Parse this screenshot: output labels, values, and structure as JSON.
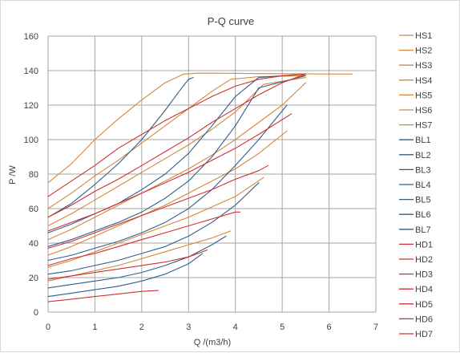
{
  "chart_data": {
    "type": "line",
    "title": "P-Q  curve",
    "xlabel": "Q /(m3/h)",
    "ylabel": "P /W",
    "xlim": [
      0,
      7
    ],
    "ylim": [
      0,
      160
    ],
    "xticks": [
      0,
      1,
      2,
      3,
      4,
      5,
      6,
      7
    ],
    "yticks": [
      0,
      20,
      40,
      60,
      80,
      100,
      120,
      140,
      160
    ],
    "grid": true,
    "legend_position": "right",
    "series": [
      {
        "name": "HS1",
        "color": "#d4873a",
        "x": [
          0,
          0.5,
          1,
          1.5,
          2,
          2.5,
          2.9,
          3.2,
          3.6,
          4.5,
          5.5,
          6.5
        ],
        "y": [
          75,
          86,
          100,
          112,
          123,
          133,
          138,
          138.5,
          138.5,
          138.3,
          138.1,
          138
        ]
      },
      {
        "name": "HS2",
        "color": "#d4873a",
        "x": [
          0,
          0.5,
          1,
          1.5,
          2,
          2.5,
          3,
          3.5,
          3.9,
          4.5,
          5.5
        ],
        "y": [
          60,
          69,
          79,
          88,
          98,
          108,
          118,
          128,
          135,
          136.5,
          137
        ]
      },
      {
        "name": "HS3",
        "color": "#d4873a",
        "x": [
          0,
          0.5,
          1,
          1.5,
          2,
          2.5,
          3,
          3.5,
          4,
          4.6,
          5.5
        ],
        "y": [
          50,
          57,
          65,
          73,
          81,
          89,
          97,
          106,
          116,
          132,
          136
        ]
      },
      {
        "name": "HS4",
        "color": "#d4873a",
        "x": [
          0,
          0.5,
          1,
          1.5,
          2,
          2.5,
          3,
          3.5,
          4,
          4.5,
          5,
          5.5
        ],
        "y": [
          42,
          48,
          55,
          62,
          69,
          76,
          83,
          91,
          100,
          110,
          120,
          133
        ]
      },
      {
        "name": "HS5",
        "color": "#d4873a",
        "x": [
          0,
          0.5,
          1,
          1.5,
          2,
          2.5,
          3,
          3.5,
          4,
          4.5,
          5.1
        ],
        "y": [
          33,
          38,
          44,
          50,
          56,
          62,
          69,
          76,
          83,
          92,
          105
        ]
      },
      {
        "name": "HS6",
        "color": "#d4873a",
        "x": [
          0,
          0.5,
          1,
          1.5,
          2,
          2.5,
          3,
          3.5,
          4,
          4.6
        ],
        "y": [
          26,
          30,
          35,
          40,
          45,
          50,
          55,
          61,
          67,
          78
        ]
      },
      {
        "name": "HS7",
        "color": "#d4873a",
        "x": [
          0,
          0.5,
          1,
          1.5,
          2,
          2.5,
          3,
          3.5,
          3.9
        ],
        "y": [
          18,
          21,
          24,
          27,
          31,
          35,
          39,
          43,
          47
        ]
      },
      {
        "name": "BL1",
        "color": "#2f5f8a",
        "x": [
          0,
          0.5,
          1,
          1.5,
          2,
          2.5,
          2.8,
          3.0,
          3.1
        ],
        "y": [
          55,
          63,
          74,
          86,
          100,
          117,
          128,
          135,
          136
        ]
      },
      {
        "name": "BL2",
        "color": "#2f5f8a",
        "x": [
          0,
          0.5,
          1,
          1.5,
          2,
          2.5,
          3,
          3.5,
          4,
          4.5,
          5.5
        ],
        "y": [
          46,
          51,
          57,
          63,
          71,
          80,
          92,
          108,
          125,
          136,
          138
        ]
      },
      {
        "name": "BL3",
        "color": "#2f5f8a",
        "x": [
          0,
          0.5,
          1,
          1.5,
          2,
          2.5,
          3,
          3.5,
          4,
          4.5,
          5.5
        ],
        "y": [
          38,
          42,
          47,
          52,
          58,
          66,
          76,
          90,
          108,
          130,
          137
        ]
      },
      {
        "name": "BL4",
        "color": "#2f5f8a",
        "x": [
          0,
          0.5,
          1,
          1.5,
          2,
          2.5,
          3,
          3.5,
          4,
          4.5,
          5.1
        ],
        "y": [
          30,
          33,
          37,
          41,
          46,
          52,
          60,
          71,
          85,
          100,
          120
        ]
      },
      {
        "name": "BL5",
        "color": "#2f5f8a",
        "x": [
          0,
          0.5,
          1,
          1.5,
          2,
          2.5,
          3,
          3.5,
          4,
          4.5
        ],
        "y": [
          22,
          24,
          27,
          30,
          34,
          38,
          44,
          52,
          62,
          75
        ]
      },
      {
        "name": "BL6",
        "color": "#2f5f8a",
        "x": [
          0,
          0.5,
          1,
          1.5,
          2,
          2.5,
          3,
          3.5,
          3.8
        ],
        "y": [
          14,
          16,
          18,
          20,
          23,
          27,
          32,
          39,
          44
        ]
      },
      {
        "name": "BL7",
        "color": "#2f5f8a",
        "x": [
          0,
          0.5,
          1,
          1.5,
          2,
          2.5,
          3,
          3.3
        ],
        "y": [
          9,
          11,
          13,
          15,
          18,
          22,
          28,
          34
        ]
      },
      {
        "name": "HD1",
        "color": "#d03030",
        "x": [
          0,
          0.5,
          1,
          1.5,
          2,
          2.5,
          3,
          3.5,
          4,
          4.5,
          5,
          5.5
        ],
        "y": [
          67,
          76,
          85,
          95,
          103,
          111,
          118,
          125,
          131,
          135,
          137,
          138
        ]
      },
      {
        "name": "HD2",
        "color": "#d03030",
        "x": [
          0,
          0.5,
          1,
          1.5,
          2,
          2.5,
          3,
          3.5,
          4,
          4.5,
          5,
          5.5
        ],
        "y": [
          55,
          62,
          70,
          77,
          85,
          93,
          101,
          110,
          118,
          126,
          133,
          138
        ]
      },
      {
        "name": "HD3",
        "color": "#d03030",
        "x": [
          0,
          0.5,
          1,
          1.5,
          2,
          2.5,
          3,
          3.5,
          4,
          4.5,
          5.2
        ],
        "y": [
          47,
          52,
          57,
          63,
          69,
          75,
          81,
          88,
          95,
          103,
          115
        ]
      },
      {
        "name": "HD4",
        "color": "#d03030",
        "x": [
          0,
          0.5,
          1,
          1.5,
          2,
          2.5,
          3,
          3.5,
          4,
          4.5,
          4.7
        ],
        "y": [
          37,
          41,
          46,
          51,
          56,
          61,
          66,
          71,
          77,
          82,
          85
        ]
      },
      {
        "name": "HD5",
        "color": "#d03030",
        "x": [
          0,
          0.5,
          1,
          1.5,
          2,
          2.5,
          3,
          3.5,
          4,
          4.1
        ],
        "y": [
          27,
          31,
          34,
          38,
          42,
          46,
          50,
          54,
          58,
          58
        ]
      },
      {
        "name": "HD6",
        "color": "#d03030",
        "x": [
          0,
          0.5,
          1,
          1.5,
          2,
          2.5,
          3,
          3.4
        ],
        "y": [
          19,
          21,
          23,
          25,
          27,
          29,
          32,
          36
        ]
      },
      {
        "name": "HD7",
        "color": "#d03030",
        "x": [
          0,
          0.5,
          1,
          1.5,
          2,
          2.35
        ],
        "y": [
          6,
          7.5,
          9,
          10.5,
          12,
          12.5
        ]
      }
    ]
  }
}
